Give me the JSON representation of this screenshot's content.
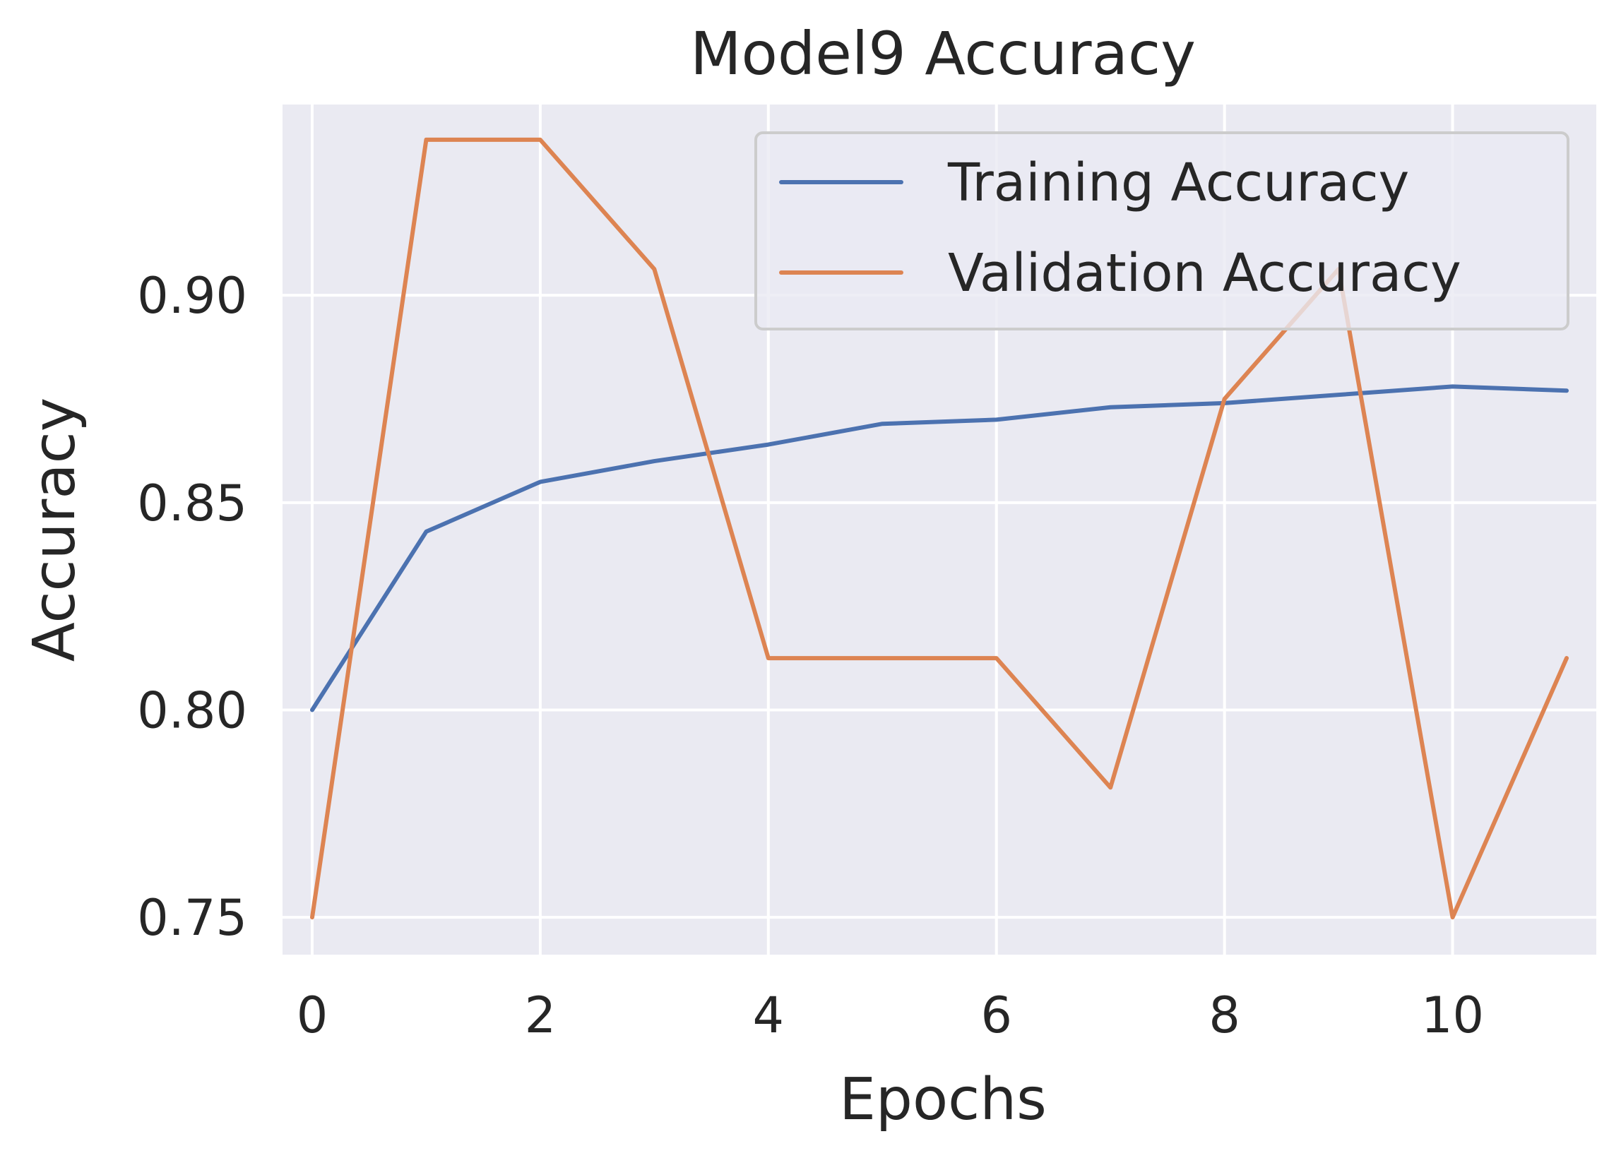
{
  "chart_data": {
    "type": "line",
    "title": "Model9 Accuracy",
    "xlabel": "Epochs",
    "ylabel": "Accuracy",
    "x": [
      0,
      1,
      2,
      3,
      4,
      5,
      6,
      7,
      8,
      9,
      10,
      11
    ],
    "xlim": [
      -0.26,
      11.26
    ],
    "ylim": [
      0.741,
      0.946
    ],
    "xticks": [
      0,
      2,
      4,
      6,
      8,
      10
    ],
    "yticks": [
      0.75,
      0.8,
      0.85,
      0.9
    ],
    "xtick_labels": [
      "0",
      "2",
      "4",
      "6",
      "8",
      "10"
    ],
    "ytick_labels": [
      "0.75",
      "0.80",
      "0.85",
      "0.90"
    ],
    "grid": true,
    "legend_position": "top-right",
    "background_color": "#eaeaf2",
    "series": [
      {
        "name": "Training Accuracy",
        "color": "#4c72b0",
        "values": [
          0.8,
          0.843,
          0.855,
          0.86,
          0.864,
          0.869,
          0.87,
          0.873,
          0.874,
          0.876,
          0.878,
          0.877
        ]
      },
      {
        "name": "Validation Accuracy",
        "color": "#dd8452",
        "values": [
          0.75,
          0.9375,
          0.9375,
          0.9063,
          0.8125,
          0.8125,
          0.8125,
          0.7813,
          0.875,
          0.9063,
          0.75,
          0.8125
        ]
      }
    ]
  }
}
